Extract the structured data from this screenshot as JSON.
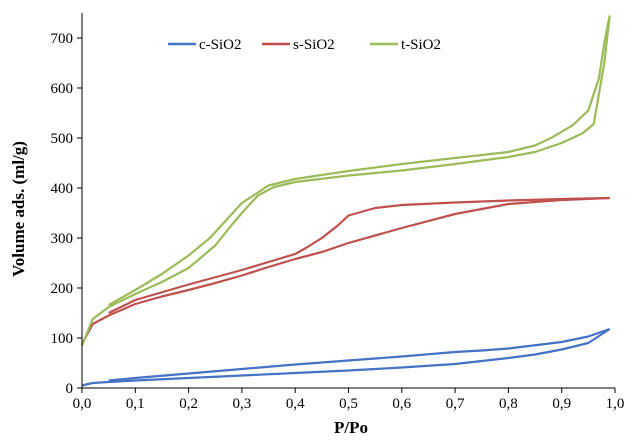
{
  "chart_data": {
    "type": "line",
    "xlabel": "P/Po",
    "ylabel": "Volume ads. (ml/g)",
    "xlim": [
      0,
      1
    ],
    "ylim": [
      0,
      750
    ],
    "x_ticks": [
      "0,0",
      "0,1",
      "0,2",
      "0,3",
      "0,4",
      "0,5",
      "0,6",
      "0,7",
      "0,8",
      "0,9",
      "1,0"
    ],
    "y_ticks": [
      "0",
      "100",
      "200",
      "300",
      "400",
      "500",
      "600",
      "700"
    ],
    "grid": false,
    "legend_position": "top",
    "series": [
      {
        "name": "c-SiO2",
        "color": "#4472c4",
        "adsorption": [
          [
            0.0,
            5
          ],
          [
            0.02,
            10
          ],
          [
            0.05,
            12
          ],
          [
            0.1,
            15
          ],
          [
            0.2,
            20
          ],
          [
            0.3,
            25
          ],
          [
            0.4,
            30
          ],
          [
            0.5,
            35
          ],
          [
            0.6,
            41
          ],
          [
            0.7,
            48
          ],
          [
            0.8,
            60
          ],
          [
            0.85,
            67
          ],
          [
            0.9,
            77
          ],
          [
            0.95,
            90
          ],
          [
            0.99,
            118
          ]
        ],
        "desorption": [
          [
            0.99,
            118
          ],
          [
            0.95,
            103
          ],
          [
            0.9,
            92
          ],
          [
            0.8,
            79
          ],
          [
            0.75,
            75
          ],
          [
            0.7,
            72
          ],
          [
            0.6,
            63
          ],
          [
            0.5,
            55
          ],
          [
            0.4,
            47
          ],
          [
            0.3,
            38
          ],
          [
            0.2,
            29
          ],
          [
            0.1,
            20
          ],
          [
            0.05,
            15
          ]
        ]
      },
      {
        "name": "s-SiO2",
        "color": "#c0504d",
        "adsorption": [
          [
            0.0,
            88
          ],
          [
            0.02,
            128
          ],
          [
            0.05,
            145
          ],
          [
            0.1,
            168
          ],
          [
            0.15,
            183
          ],
          [
            0.2,
            196
          ],
          [
            0.25,
            210
          ],
          [
            0.3,
            225
          ],
          [
            0.35,
            242
          ],
          [
            0.4,
            258
          ],
          [
            0.45,
            272
          ],
          [
            0.5,
            290
          ],
          [
            0.6,
            320
          ],
          [
            0.7,
            348
          ],
          [
            0.8,
            368
          ],
          [
            0.9,
            376
          ],
          [
            0.99,
            380
          ]
        ],
        "desorption": [
          [
            0.99,
            380
          ],
          [
            0.9,
            378
          ],
          [
            0.8,
            375
          ],
          [
            0.7,
            371
          ],
          [
            0.6,
            366
          ],
          [
            0.55,
            360
          ],
          [
            0.5,
            345
          ],
          [
            0.48,
            325
          ],
          [
            0.45,
            300
          ],
          [
            0.42,
            280
          ],
          [
            0.4,
            268
          ],
          [
            0.35,
            252
          ],
          [
            0.3,
            236
          ],
          [
            0.2,
            207
          ],
          [
            0.1,
            176
          ],
          [
            0.05,
            150
          ]
        ]
      },
      {
        "name": "t-SiO2",
        "color": "#9bbb59",
        "adsorption": [
          [
            0.0,
            85
          ],
          [
            0.02,
            138
          ],
          [
            0.05,
            162
          ],
          [
            0.1,
            188
          ],
          [
            0.15,
            212
          ],
          [
            0.2,
            240
          ],
          [
            0.25,
            285
          ],
          [
            0.28,
            325
          ],
          [
            0.3,
            350
          ],
          [
            0.33,
            385
          ],
          [
            0.36,
            402
          ],
          [
            0.4,
            412
          ],
          [
            0.5,
            425
          ],
          [
            0.6,
            435
          ],
          [
            0.7,
            448
          ],
          [
            0.8,
            462
          ],
          [
            0.85,
            472
          ],
          [
            0.9,
            490
          ],
          [
            0.94,
            510
          ],
          [
            0.96,
            528
          ],
          [
            0.98,
            650
          ],
          [
            0.99,
            745
          ]
        ],
        "desorption": [
          [
            0.99,
            745
          ],
          [
            0.98,
            690
          ],
          [
            0.97,
            620
          ],
          [
            0.95,
            555
          ],
          [
            0.92,
            525
          ],
          [
            0.88,
            500
          ],
          [
            0.85,
            485
          ],
          [
            0.8,
            472
          ],
          [
            0.7,
            460
          ],
          [
            0.6,
            448
          ],
          [
            0.5,
            434
          ],
          [
            0.4,
            418
          ],
          [
            0.35,
            405
          ],
          [
            0.3,
            370
          ],
          [
            0.27,
            335
          ],
          [
            0.24,
            300
          ],
          [
            0.2,
            265
          ],
          [
            0.15,
            228
          ],
          [
            0.1,
            196
          ],
          [
            0.05,
            166
          ]
        ]
      }
    ]
  }
}
